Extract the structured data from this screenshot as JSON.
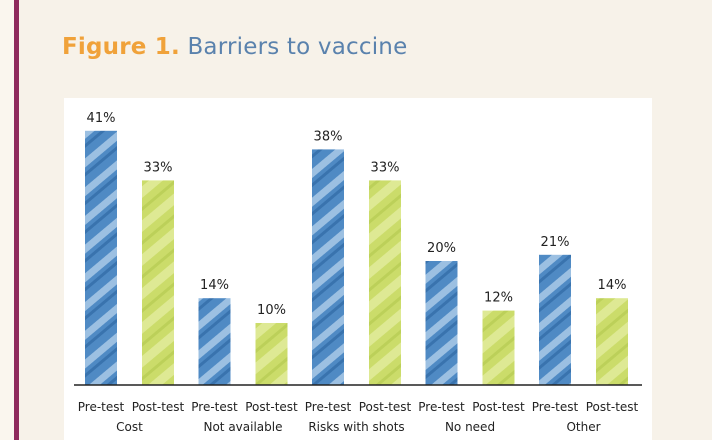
{
  "figure": {
    "label": "Figure 1.",
    "title": "Barriers to vaccine"
  },
  "colors": {
    "pre": "#4f8ac4",
    "post": "#cbdc6a",
    "title_label": "#f0a23a",
    "title_text": "#5a82ad",
    "accent_rule": "#8e2a5c"
  },
  "chart_data": {
    "type": "bar",
    "categories": [
      "Cost",
      "Not available",
      "Risks with shots",
      "No need",
      "Other"
    ],
    "series": [
      {
        "name": "Pre-test",
        "values": [
          41,
          14,
          38,
          20,
          21
        ]
      },
      {
        "name": "Post-test",
        "values": [
          33,
          10,
          33,
          12,
          14
        ]
      }
    ],
    "value_suffix": "%",
    "title": "Barriers to vaccine",
    "xlabel": "",
    "ylabel": "",
    "ylim": [
      0,
      45
    ],
    "grid": false,
    "legend": "none"
  }
}
